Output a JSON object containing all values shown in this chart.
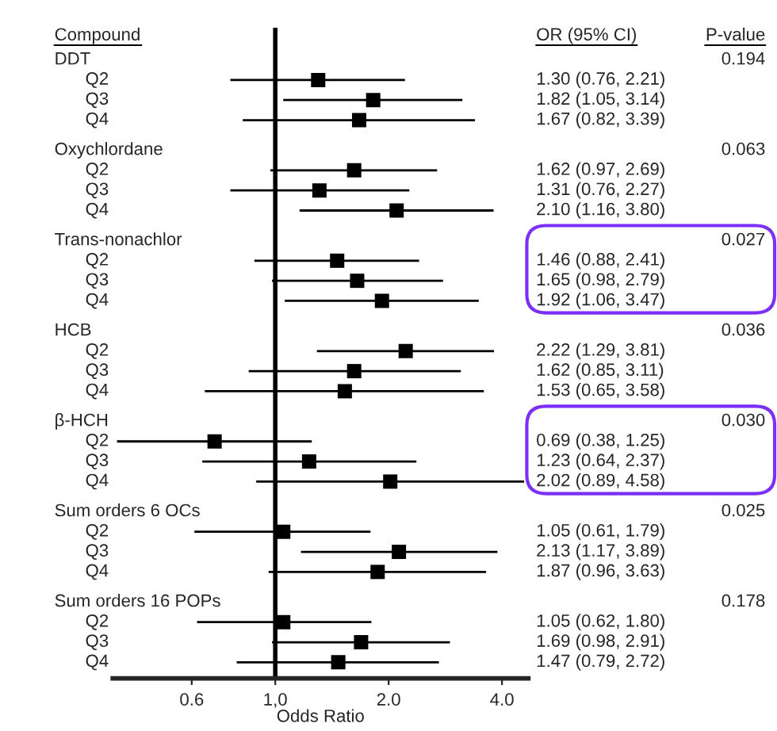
{
  "chart_data": {
    "type": "scatter",
    "orientation": "horizontal",
    "marker": "square",
    "legend": false,
    "ylabel": "Compound",
    "xlabel": "Odds Ratio",
    "log": "x",
    "categories": [
      "DDT",
      "Q2",
      "Q3",
      "Q4",
      "Oxychlordane",
      "Q2",
      "Q3",
      "Q4",
      "Trans-nonachlor",
      "Q2",
      "Q3",
      "Q4",
      "HCB",
      "Q2",
      "Q3",
      "Q4",
      "β-HCH",
      "Q2",
      "Q3",
      "Q4",
      "Sum orders 6 OCs",
      "Q2",
      "Q3",
      "Q4",
      "Sum orders 16 POPs",
      "Q2",
      "Q3",
      "Q4"
    ],
    "values": [
      null,
      1.3,
      1.82,
      1.67,
      null,
      1.62,
      1.31,
      2.1,
      null,
      1.46,
      1.65,
      1.92,
      null,
      2.22,
      1.62,
      1.53,
      null,
      0.69,
      1.23,
      2.02,
      null,
      1.05,
      2.13,
      1.87,
      null,
      1.05,
      1.69,
      1.47
    ],
    "errors": [
      null,
      [
        0.76,
        2.21
      ],
      [
        1.05,
        3.14
      ],
      [
        0.82,
        3.39
      ],
      null,
      [
        0.97,
        2.69
      ],
      [
        0.76,
        2.27
      ],
      [
        1.16,
        3.8
      ],
      null,
      [
        0.88,
        2.41
      ],
      [
        0.98,
        2.79
      ],
      [
        1.06,
        3.47
      ],
      null,
      [
        1.29,
        3.81
      ],
      [
        0.85,
        3.11
      ],
      [
        0.65,
        3.58
      ],
      null,
      [
        0.38,
        1.25
      ],
      [
        0.64,
        2.37
      ],
      [
        0.89,
        4.58
      ],
      null,
      [
        0.61,
        1.79
      ],
      [
        1.17,
        3.89
      ],
      [
        0.96,
        3.63
      ],
      null,
      [
        0.62,
        1.8
      ],
      [
        0.98,
        2.91
      ],
      [
        0.79,
        2.72
      ]
    ],
    "value_labels": [
      null,
      "1.30 (0.76, 2.21)",
      "1.82 (1.05, 3.14)",
      "1.67 (0.82, 3.39)",
      null,
      "1.62 (0.97, 2.69)",
      "1.31 (0.76, 2.27)",
      "2.10 (1.16, 3.80)",
      null,
      "1.46 (0.88, 2.41)",
      "1.65 (0.98, 2.79)",
      "1.92 (1.06, 3.47)",
      null,
      "2.22 (1.29, 3.81)",
      "1.62 (0.85, 3.11)",
      "1.53 (0.65, 3.58)",
      null,
      "0.69 (0.38, 1.25)",
      "1.23 (0.64, 2.37)",
      "2.02 (0.89, 4.58)",
      null,
      "1.05 (0.61, 1.79)",
      "2.13 (1.17, 3.89)",
      "1.87 (0.96, 3.63)",
      null,
      "1.05 (0.62, 1.80)",
      "1.69 (0.98, 2.91)",
      "1.47 (0.79, 2.72)"
    ],
    "color": "#000000",
    "xlim": [
      0.37,
      4.7
    ],
    "xticks": [
      {
        "value": 0.6,
        "label": "0.6"
      },
      {
        "value": 1,
        "label": "1,0"
      },
      {
        "value": 2,
        "label": "2.0"
      },
      {
        "value": 4,
        "label": "4.0"
      }
    ],
    "ref_lines": [
      {
        "axis": "x",
        "value": 1,
        "color": "#000000"
      }
    ],
    "annotations": [
      "OR (95% CI)",
      "P-value",
      "0.194",
      "0.063",
      "0.027",
      "0.036",
      "0.030",
      "0.025",
      "0.178"
    ]
  }
}
